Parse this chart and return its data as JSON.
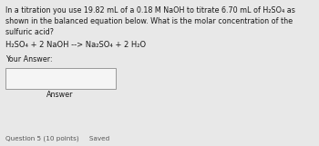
{
  "bg_color": "#e8e8e8",
  "line1": "In a titration you use 19.82 mL of a 0.18 M NaOH to titrate 6.70 mL of H₂SO₄ as",
  "line2": "shown in the balanced equation below. What is the molar concentration of the",
  "line3": "sulfuric acid?",
  "equation": "H₂SO₄ + 2 NaOH →→ Na₂SO₄ + 2 H₂O",
  "equation_display": "H₂SO₄ + 2 NaOH --> Na₂SO₄ + 2 H₂O",
  "your_answer_label": "Your Answer:",
  "answer_button_text": "Answer",
  "footer": "Question 5 (10 points)     Saved",
  "text_color": "#1a1a1a",
  "box_color": "#f5f5f5",
  "box_border": "#999999",
  "footer_color": "#555555",
  "font_size_body": 5.8,
  "font_size_eq": 6.0,
  "font_size_label": 5.8,
  "font_size_footer": 5.2
}
